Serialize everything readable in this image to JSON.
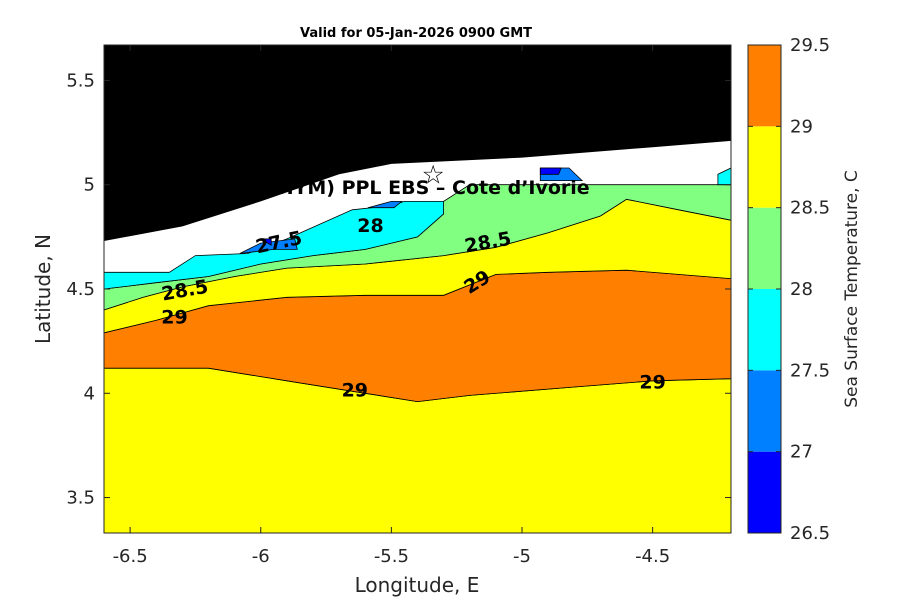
{
  "chart_data": {
    "type": "contour",
    "title": "Valid for 05-Jan-2026 0900 GMT",
    "xlabel": "Longitude, E",
    "ylabel": "Latitude, N",
    "xlim": [
      -6.6,
      -4.2
    ],
    "ylim": [
      3.33,
      5.67
    ],
    "xticks": [
      -6.5,
      -6,
      -5.5,
      -5,
      -4.5
    ],
    "xtick_labels": [
      "-6.5",
      "-6",
      "-5.5",
      "-5",
      "-4.5"
    ],
    "yticks": [
      3.5,
      4,
      4.5,
      5,
      5.5
    ],
    "ytick_labels": [
      "3.5",
      "4",
      "4.5",
      "5",
      "5.5"
    ],
    "site_label": "OA (ONHYM) PPL EBS  – Cote d’Ivorie",
    "site_marker": {
      "lon": -5.34,
      "lat": 5.05,
      "symbol": "☆"
    },
    "colorbar": {
      "label": "Sea Surface Temperature, C",
      "ticks": [
        26.5,
        27,
        27.5,
        28,
        28.5,
        29,
        29.5
      ],
      "tick_labels": [
        "26.5",
        "27",
        "27.5",
        "28",
        "28.5",
        "29",
        "29.5"
      ],
      "levels": [
        26.5,
        27,
        27.5,
        28,
        28.5,
        29,
        29.5
      ],
      "colors": [
        "#0000ff",
        "#0080ff",
        "#00ffff",
        "#80ff80",
        "#ffff00",
        "#ff8000"
      ]
    },
    "land_color": "#000000",
    "land_boundary": [
      [
        -6.6,
        4.73
      ],
      [
        -6.3,
        4.8
      ],
      [
        -6.0,
        4.92
      ],
      [
        -5.7,
        5.05
      ],
      [
        -5.5,
        5.1
      ],
      [
        -5.0,
        5.13
      ],
      [
        -4.5,
        5.18
      ],
      [
        -4.2,
        5.21
      ]
    ],
    "contour_labels": [
      {
        "text": "27.5",
        "lon": -5.93,
        "lat": 4.72,
        "angle": -12
      },
      {
        "text": "28",
        "lon": -5.58,
        "lat": 4.8,
        "angle": 0
      },
      {
        "text": "28.5",
        "lon": -5.13,
        "lat": 4.72,
        "angle": -10
      },
      {
        "text": "28.5",
        "lon": -6.29,
        "lat": 4.49,
        "angle": -10
      },
      {
        "text": "29",
        "lon": -6.33,
        "lat": 4.36,
        "angle": 0
      },
      {
        "text": "29",
        "lon": -5.17,
        "lat": 4.53,
        "angle": -32
      },
      {
        "text": "29",
        "lon": -5.64,
        "lat": 4.01,
        "angle": 0
      },
      {
        "text": "29",
        "lon": -4.5,
        "lat": 4.05,
        "angle": 0
      }
    ],
    "regions": [
      {
        "sst_band": "28.5-29",
        "fill": "#ffff00",
        "boundary": [
          [
            -6.6,
            3.33
          ],
          [
            -4.2,
            3.33
          ],
          [
            -4.2,
            4.07
          ],
          [
            -4.5,
            4.06
          ],
          [
            -4.8,
            4.03
          ],
          [
            -5.2,
            3.99
          ],
          [
            -5.4,
            3.96
          ],
          [
            -5.6,
            4.0
          ],
          [
            -5.9,
            4.06
          ],
          [
            -6.2,
            4.12
          ],
          [
            -6.6,
            4.12
          ]
        ]
      },
      {
        "sst_band": "29-29.5",
        "fill": "#ff8000",
        "boundary": [
          [
            -6.6,
            4.29
          ],
          [
            -6.4,
            4.35
          ],
          [
            -6.2,
            4.42
          ],
          [
            -5.9,
            4.46
          ],
          [
            -5.6,
            4.47
          ],
          [
            -5.3,
            4.47
          ],
          [
            -5.1,
            4.57
          ],
          [
            -4.9,
            4.58
          ],
          [
            -4.6,
            4.59
          ],
          [
            -4.2,
            4.55
          ],
          [
            -4.2,
            4.07
          ],
          [
            -4.5,
            4.06
          ],
          [
            -4.8,
            4.03
          ],
          [
            -5.2,
            3.99
          ],
          [
            -5.4,
            3.96
          ],
          [
            -5.6,
            4.0
          ],
          [
            -5.9,
            4.06
          ],
          [
            -6.2,
            4.12
          ],
          [
            -6.6,
            4.12
          ]
        ]
      },
      {
        "sst_band": "28.5-29",
        "fill": "#ffff00",
        "boundary": [
          [
            -6.6,
            4.4
          ],
          [
            -6.45,
            4.46
          ],
          [
            -6.3,
            4.51
          ],
          [
            -6.1,
            4.56
          ],
          [
            -5.9,
            4.6
          ],
          [
            -5.6,
            4.62
          ],
          [
            -5.3,
            4.66
          ],
          [
            -5.1,
            4.7
          ],
          [
            -4.9,
            4.77
          ],
          [
            -4.7,
            4.85
          ],
          [
            -4.6,
            4.93
          ],
          [
            -4.4,
            4.88
          ],
          [
            -4.2,
            4.83
          ],
          [
            -4.2,
            4.55
          ],
          [
            -4.6,
            4.59
          ],
          [
            -4.9,
            4.58
          ],
          [
            -5.1,
            4.57
          ],
          [
            -5.3,
            4.47
          ],
          [
            -5.6,
            4.47
          ],
          [
            -5.9,
            4.46
          ],
          [
            -6.2,
            4.42
          ],
          [
            -6.4,
            4.35
          ],
          [
            -6.6,
            4.29
          ]
        ]
      },
      {
        "sst_band": "28-28.5",
        "fill": "#80ff80",
        "boundary": [
          [
            -6.6,
            4.5
          ],
          [
            -6.4,
            4.53
          ],
          [
            -6.2,
            4.56
          ],
          [
            -6.0,
            4.62
          ],
          [
            -5.8,
            4.66
          ],
          [
            -5.6,
            4.69
          ],
          [
            -5.4,
            4.75
          ],
          [
            -5.3,
            4.86
          ],
          [
            -5.3,
            4.92
          ],
          [
            -5.2,
            5.0
          ],
          [
            -4.2,
            5.0
          ],
          [
            -4.2,
            4.83
          ],
          [
            -4.4,
            4.88
          ],
          [
            -4.6,
            4.93
          ],
          [
            -4.7,
            4.85
          ],
          [
            -4.9,
            4.77
          ],
          [
            -5.1,
            4.7
          ],
          [
            -5.3,
            4.66
          ],
          [
            -5.6,
            4.62
          ],
          [
            -5.9,
            4.6
          ],
          [
            -6.1,
            4.56
          ],
          [
            -6.3,
            4.51
          ],
          [
            -6.45,
            4.46
          ],
          [
            -6.6,
            4.4
          ]
        ]
      },
      {
        "sst_band": "27.5-28",
        "fill": "#00ffff",
        "boundary": [
          [
            -6.6,
            4.58
          ],
          [
            -6.35,
            4.58
          ],
          [
            -6.25,
            4.66
          ],
          [
            -6.05,
            4.67
          ],
          [
            -5.9,
            4.74
          ],
          [
            -5.65,
            4.88
          ],
          [
            -5.5,
            4.9
          ],
          [
            -5.45,
            4.92
          ],
          [
            -5.3,
            4.92
          ],
          [
            -5.3,
            4.86
          ],
          [
            -5.4,
            4.75
          ],
          [
            -5.6,
            4.69
          ],
          [
            -5.8,
            4.66
          ],
          [
            -6.0,
            4.62
          ],
          [
            -6.2,
            4.56
          ],
          [
            -6.4,
            4.53
          ],
          [
            -6.6,
            4.5
          ]
        ]
      },
      {
        "sst_band": "27.5-28",
        "fill": "#00ffff",
        "boundary": [
          [
            -4.25,
            5.0
          ],
          [
            -4.2,
            5.0
          ],
          [
            -4.2,
            5.08
          ],
          [
            -4.25,
            5.05
          ]
        ]
      },
      {
        "sst_band": "27-27.5",
        "fill": "#0080ff",
        "boundary": [
          [
            -6.08,
            4.67
          ],
          [
            -6.0,
            4.72
          ],
          [
            -5.87,
            4.74
          ],
          [
            -5.86,
            4.69
          ],
          [
            -5.95,
            4.69
          ]
        ]
      },
      {
        "sst_band": "27-27.5",
        "fill": "#0080ff",
        "boundary": [
          [
            -5.59,
            4.89
          ],
          [
            -5.5,
            4.92
          ],
          [
            -5.46,
            4.92
          ],
          [
            -5.49,
            4.89
          ]
        ]
      },
      {
        "sst_band": "27-27.5",
        "fill": "#0080ff",
        "boundary": [
          [
            -4.93,
            5.08
          ],
          [
            -4.82,
            5.08
          ],
          [
            -4.77,
            5.02
          ],
          [
            -4.93,
            5.02
          ]
        ]
      },
      {
        "sst_band": "26.5-27",
        "fill": "#0000ff",
        "boundary": [
          [
            -6.0,
            4.74
          ],
          [
            -5.96,
            4.74
          ],
          [
            -5.96,
            4.71
          ]
        ]
      },
      {
        "sst_band": "26.5-27",
        "fill": "#0000ff",
        "boundary": [
          [
            -4.93,
            5.08
          ],
          [
            -4.85,
            5.08
          ],
          [
            -4.86,
            5.05
          ],
          [
            -4.93,
            5.05
          ]
        ]
      }
    ]
  }
}
